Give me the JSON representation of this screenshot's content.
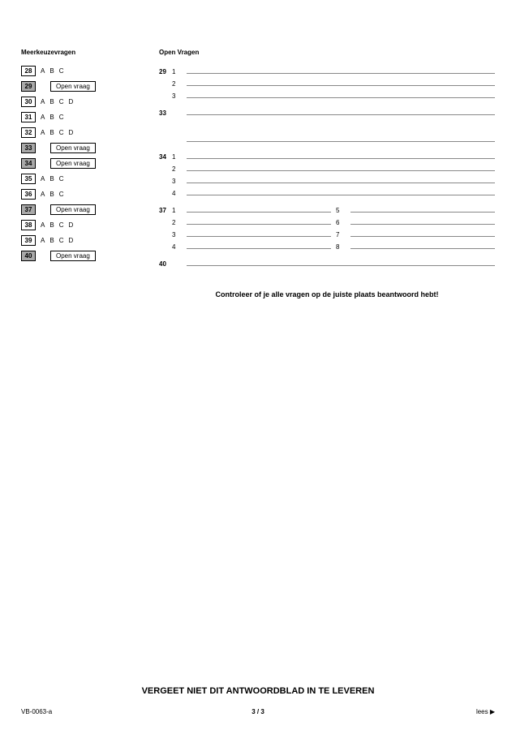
{
  "headers": {
    "left": "Meerkeuzevragen",
    "right": "Open Vragen"
  },
  "open_vraag_label": "Open vraag",
  "mc_rows": [
    {
      "num": "28",
      "shaded": false,
      "type": "mc",
      "opts": [
        "A",
        "B",
        "C"
      ]
    },
    {
      "num": "29",
      "shaded": true,
      "type": "open"
    },
    {
      "num": "30",
      "shaded": false,
      "type": "mc",
      "opts": [
        "A",
        "B",
        "C",
        "D"
      ]
    },
    {
      "num": "31",
      "shaded": false,
      "type": "mc",
      "opts": [
        "A",
        "B",
        "C"
      ]
    },
    {
      "num": "32",
      "shaded": false,
      "type": "mc",
      "opts": [
        "A",
        "B",
        "C",
        "D"
      ]
    },
    {
      "num": "33",
      "shaded": true,
      "type": "open"
    },
    {
      "num": "34",
      "shaded": true,
      "type": "open"
    },
    {
      "num": "35",
      "shaded": false,
      "type": "mc",
      "opts": [
        "A",
        "B",
        "C"
      ]
    },
    {
      "num": "36",
      "shaded": false,
      "type": "mc",
      "opts": [
        "A",
        "B",
        "C"
      ]
    },
    {
      "num": "37",
      "shaded": true,
      "type": "open"
    },
    {
      "num": "38",
      "shaded": false,
      "type": "mc",
      "opts": [
        "A",
        "B",
        "C",
        "D"
      ]
    },
    {
      "num": "39",
      "shaded": false,
      "type": "mc",
      "opts": [
        "A",
        "B",
        "C",
        "D"
      ]
    },
    {
      "num": "40",
      "shaded": true,
      "type": "open"
    }
  ],
  "right_groups": [
    {
      "qnum": "29",
      "lines": [
        "1",
        "2",
        "3"
      ]
    },
    {
      "qnum": "33",
      "lines": [
        ""
      ]
    },
    {
      "qnum": "",
      "lines": [
        ""
      ]
    },
    {
      "qnum": "34",
      "lines": [
        "1",
        "2",
        "3",
        "4"
      ]
    },
    {
      "qnum": "37",
      "pairs": [
        [
          "1",
          "5"
        ],
        [
          "2",
          "6"
        ],
        [
          "3",
          "7"
        ],
        [
          "4",
          "8"
        ]
      ]
    },
    {
      "qnum": "40",
      "lines": [
        ""
      ]
    }
  ],
  "group_gaps": [
    2,
    4,
    18,
    2,
    4,
    4
  ],
  "instruction": "Controleer of je alle vragen op de juiste plaats beantwoord hebt!",
  "reminder": "VERGEET NIET DIT ANTWOORDBLAD IN TE LEVEREN",
  "footer": {
    "left": "VB-0063-a",
    "center": "3 / 3",
    "right": "lees ▶"
  },
  "colors": {
    "rule": "#888888",
    "shaded": "#a9a9a9",
    "bg": "#ffffff"
  }
}
